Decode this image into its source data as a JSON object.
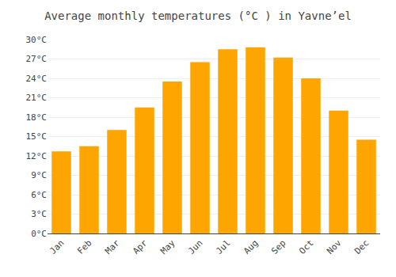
{
  "chart_data": {
    "type": "bar",
    "title": "Average monthly temperatures (°C ) in Yavneʼel",
    "categories": [
      "Jan",
      "Feb",
      "Mar",
      "Apr",
      "May",
      "Jun",
      "Jul",
      "Aug",
      "Sep",
      "Oct",
      "Nov",
      "Dec"
    ],
    "values": [
      12.7,
      13.5,
      16.0,
      19.5,
      23.5,
      26.5,
      28.5,
      28.8,
      27.2,
      24.0,
      19.0,
      14.5
    ],
    "color": "#FFA500",
    "ylim": [
      0,
      30
    ],
    "yticks": [
      {
        "value": 0,
        "label": "0°C"
      },
      {
        "value": 3,
        "label": "3°C"
      },
      {
        "value": 6,
        "label": "6°C"
      },
      {
        "value": 9,
        "label": "9°C"
      },
      {
        "value": 12,
        "label": "12°C"
      },
      {
        "value": 15,
        "label": "15°C"
      },
      {
        "value": 18,
        "label": "18°C"
      },
      {
        "value": 21,
        "label": "21°C"
      },
      {
        "value": 24,
        "label": "24°C"
      },
      {
        "value": 27,
        "label": "27°C"
      },
      {
        "value": 30,
        "label": "30°C"
      }
    ],
    "grid": true
  }
}
